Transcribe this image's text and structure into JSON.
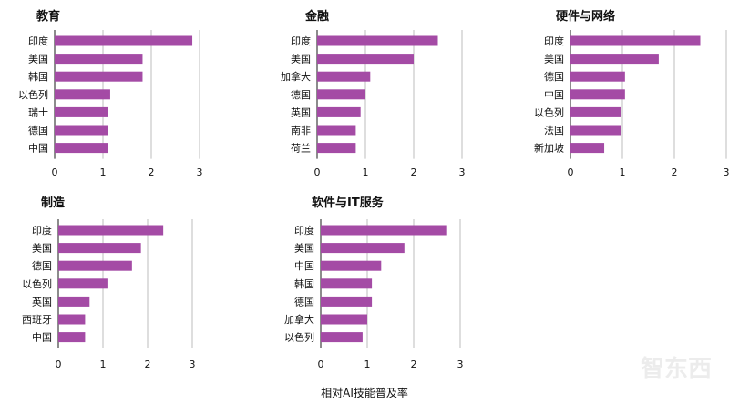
{
  "figure": {
    "xlabel": "相对AI技能普及率",
    "bar_color": "#a44ba5",
    "grid_color": "#bdbdbd",
    "watermark": "智东西"
  },
  "chart_data": [
    {
      "type": "bar",
      "orientation": "horizontal",
      "title": "教育",
      "categories": [
        "印度",
        "美国",
        "韩国",
        "以色列",
        "瑞士",
        "德国",
        "中国"
      ],
      "values": [
        2.85,
        1.82,
        1.82,
        1.15,
        1.1,
        1.1,
        1.1
      ],
      "xlim": [
        0,
        3
      ],
      "xticks": [
        "0",
        "1",
        "2",
        "3"
      ]
    },
    {
      "type": "bar",
      "orientation": "horizontal",
      "title": "金融",
      "categories": [
        "印度",
        "美国",
        "加拿大",
        "德国",
        "英国",
        "南非",
        "荷兰"
      ],
      "values": [
        2.5,
        2.0,
        1.1,
        1.0,
        0.9,
        0.8,
        0.8
      ],
      "xlim": [
        0,
        3
      ],
      "xticks": [
        "0",
        "1",
        "2",
        "3"
      ]
    },
    {
      "type": "bar",
      "orientation": "horizontal",
      "title": "硬件与网络",
      "categories": [
        "印度",
        "美国",
        "德国",
        "中国",
        "以色列",
        "法国",
        "新加坡"
      ],
      "values": [
        2.5,
        1.7,
        1.05,
        1.05,
        0.97,
        0.97,
        0.65
      ],
      "xlim": [
        0,
        3
      ],
      "xticks": [
        "0",
        "1",
        "2",
        "3"
      ]
    },
    {
      "type": "bar",
      "orientation": "horizontal",
      "title": "制造",
      "categories": [
        "印度",
        "美国",
        "德国",
        "以色列",
        "英国",
        "西班牙",
        "中国"
      ],
      "values": [
        2.35,
        1.85,
        1.65,
        1.1,
        0.7,
        0.6,
        0.6
      ],
      "xlim": [
        0,
        3
      ],
      "xticks": [
        "0",
        "1",
        "2",
        "3"
      ]
    },
    {
      "type": "bar",
      "orientation": "horizontal",
      "title": "软件与IT服务",
      "categories": [
        "印度",
        "美国",
        "中国",
        "韩国",
        "德国",
        "加拿大",
        "以色列"
      ],
      "values": [
        2.7,
        1.8,
        1.3,
        1.1,
        1.1,
        1.0,
        0.9
      ],
      "xlim": [
        0,
        3
      ],
      "xticks": [
        "0",
        "1",
        "2",
        "3"
      ]
    }
  ]
}
